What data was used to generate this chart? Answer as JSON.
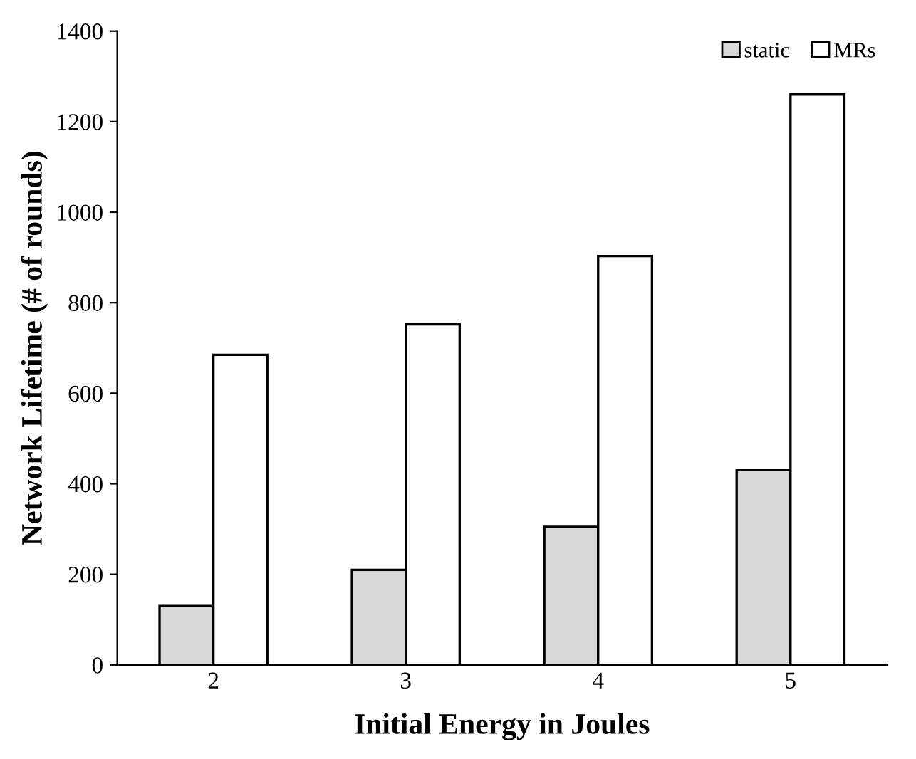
{
  "chart_data": {
    "type": "bar",
    "xlabel": "Initial Energy in Joules",
    "ylabel": "Network Lifetime (# of rounds)",
    "categories": [
      "2",
      "3",
      "4",
      "5"
    ],
    "series": [
      {
        "name": "static",
        "color": "#d9d9d9",
        "values": [
          130,
          210,
          305,
          430
        ]
      },
      {
        "name": "MRs",
        "color": "#ffffff",
        "values": [
          685,
          752,
          903,
          1260
        ]
      }
    ],
    "ylim": [
      0,
      1400
    ],
    "yticks": [
      0,
      200,
      400,
      600,
      800,
      1000,
      1200,
      1400
    ],
    "grid": false,
    "legend": "top right"
  }
}
